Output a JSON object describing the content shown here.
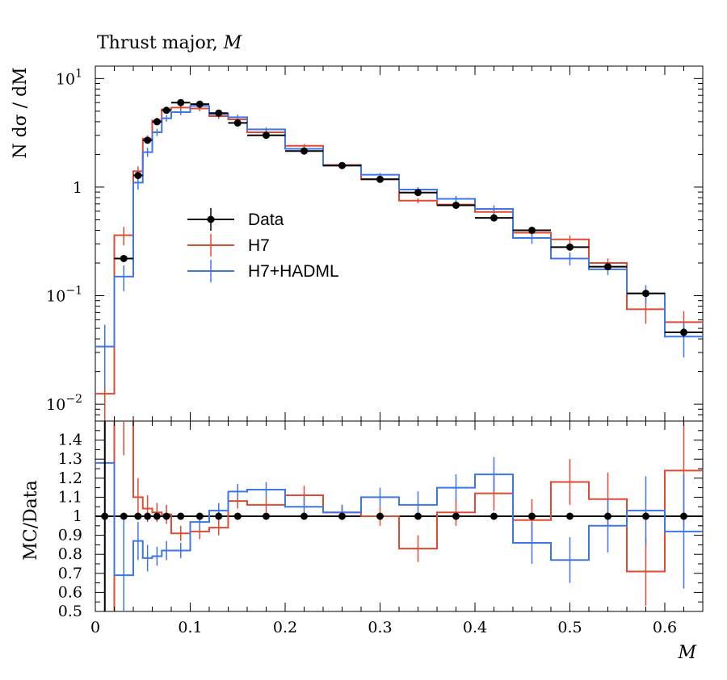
{
  "title": "Thrust major, M",
  "title_plain": "Thrust major, ",
  "title_var": "M",
  "chart_data": {
    "type": "line",
    "upper_panel": {
      "ylabel": "N dσ / dM",
      "yscale": "log",
      "ylim": [
        0.007,
        13
      ],
      "yticks": [
        {
          "value": 10,
          "base": "10",
          "exp": "1"
        },
        {
          "value": 1,
          "base": "1",
          "exp": ""
        },
        {
          "value": 0.1,
          "base": "10",
          "exp": "−1"
        },
        {
          "value": 0.01,
          "base": "10",
          "exp": "−2"
        }
      ]
    },
    "lower_panel": {
      "ylabel": "MC/Data",
      "ylim": [
        0.5,
        1.5
      ],
      "yticks": [
        "1.4",
        "1.3",
        "1.2",
        "1.1",
        "1",
        "0.9",
        "0.8",
        "0.7",
        "0.6",
        "0.5"
      ]
    },
    "xlabel": "M",
    "xlim": [
      0,
      0.64
    ],
    "xticks": [
      "0",
      "0.1",
      "0.2",
      "0.3",
      "0.4",
      "0.5",
      "0.6"
    ],
    "bin_edges": [
      0.0,
      0.02,
      0.04,
      0.05,
      0.06,
      0.07,
      0.08,
      0.1,
      0.12,
      0.14,
      0.16,
      0.2,
      0.24,
      0.28,
      0.32,
      0.36,
      0.4,
      0.44,
      0.48,
      0.52,
      0.56,
      0.6,
      0.64
    ],
    "legend": {
      "position": "center-left"
    },
    "series": [
      {
        "name": "Data",
        "color": "#000000",
        "values": [
          null,
          0.22,
          1.28,
          2.7,
          4.0,
          5.1,
          6.0,
          5.8,
          4.8,
          3.9,
          3.0,
          2.15,
          1.58,
          1.18,
          0.89,
          0.68,
          0.52,
          0.4,
          0.28,
          0.185,
          0.105,
          0.046
        ],
        "errors": [
          0,
          0.012,
          0.05,
          0.08,
          0.1,
          0.1,
          0.1,
          0.1,
          0.08,
          0.06,
          0.05,
          0.04,
          0.03,
          0.02,
          0.02,
          0.015,
          0.012,
          0.01,
          0.008,
          0.007,
          0.006,
          0.004
        ],
        "ratio": [
          1,
          1,
          1,
          1,
          1,
          1,
          1,
          1,
          1,
          1,
          1,
          1,
          1,
          1,
          1,
          1,
          1,
          1,
          1,
          1,
          1,
          1
        ]
      },
      {
        "name": "H7",
        "color": "#e04a32",
        "values": [
          0.0125,
          0.36,
          1.4,
          2.8,
          4.1,
          5.2,
          5.4,
          5.3,
          4.5,
          4.2,
          3.2,
          2.4,
          1.6,
          1.18,
          0.75,
          0.69,
          0.59,
          0.38,
          0.33,
          0.2,
          0.075,
          0.057
        ],
        "errors": [
          0.006,
          0.07,
          0.15,
          0.2,
          0.25,
          0.3,
          0.3,
          0.3,
          0.25,
          0.25,
          0.15,
          0.1,
          0.06,
          0.05,
          0.04,
          0.04,
          0.04,
          0.03,
          0.03,
          0.02,
          0.02,
          0.015
        ],
        "ratio": [
          0.49,
          1.62,
          1.1,
          1.04,
          1.02,
          1.01,
          0.91,
          0.92,
          0.94,
          1.08,
          1.06,
          1.11,
          1.02,
          1.0,
          0.83,
          1.02,
          1.12,
          0.98,
          1.18,
          1.09,
          0.71,
          1.24
        ],
        "ratio_errors": [
          0.3,
          0.3,
          0.1,
          0.07,
          0.05,
          0.05,
          0.04,
          0.04,
          0.04,
          0.04,
          0.04,
          0.05,
          0.04,
          0.05,
          0.07,
          0.07,
          0.09,
          0.11,
          0.12,
          0.14,
          0.18,
          0.3
        ]
      },
      {
        "name": "H7+HADML",
        "color": "#3e75e8",
        "values": [
          0.034,
          0.15,
          1.1,
          2.1,
          3.2,
          4.3,
          4.9,
          5.6,
          4.7,
          4.4,
          3.4,
          2.25,
          1.58,
          1.3,
          0.95,
          0.78,
          0.63,
          0.34,
          0.22,
          0.175,
          0.105,
          0.042
        ],
        "errors": [
          0.02,
          0.04,
          0.15,
          0.2,
          0.25,
          0.3,
          0.3,
          0.3,
          0.25,
          0.25,
          0.15,
          0.1,
          0.06,
          0.05,
          0.05,
          0.05,
          0.05,
          0.04,
          0.03,
          0.02,
          0.02,
          0.015
        ],
        "ratio": [
          1.28,
          0.69,
          0.87,
          0.78,
          0.79,
          0.82,
          0.82,
          0.97,
          1.03,
          1.13,
          1.14,
          1.05,
          1.02,
          1.1,
          1.06,
          1.15,
          1.22,
          0.86,
          0.77,
          0.95,
          1.03,
          0.92
        ],
        "ratio_errors": [
          0.3,
          0.3,
          0.1,
          0.07,
          0.05,
          0.05,
          0.04,
          0.04,
          0.04,
          0.04,
          0.04,
          0.05,
          0.04,
          0.05,
          0.07,
          0.07,
          0.09,
          0.11,
          0.12,
          0.14,
          0.18,
          0.3
        ]
      }
    ]
  }
}
